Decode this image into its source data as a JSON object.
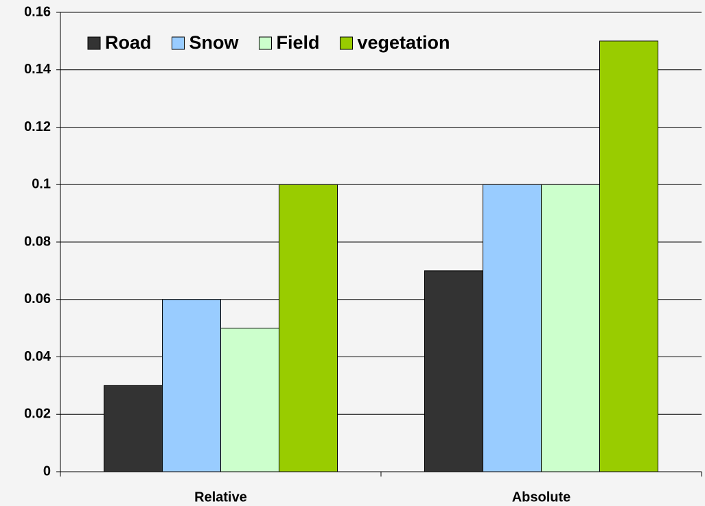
{
  "chart_data": {
    "type": "bar",
    "categories": [
      "Relative",
      "Absolute"
    ],
    "series": [
      {
        "name": "Road",
        "color": "#333333",
        "values": [
          0.03,
          0.07
        ]
      },
      {
        "name": "Snow",
        "color": "#99ccff",
        "values": [
          0.06,
          0.1
        ]
      },
      {
        "name": "Field",
        "color": "#ccffcc",
        "values": [
          0.05,
          0.1
        ]
      },
      {
        "name": "vegetation",
        "color": "#99cc00",
        "values": [
          0.1,
          0.15
        ]
      }
    ],
    "ylim": [
      0,
      0.16
    ],
    "yticks": [
      0,
      0.02,
      0.04,
      0.06,
      0.08,
      0.1,
      0.12,
      0.14,
      0.16
    ],
    "grid": true,
    "legend": "top-left"
  }
}
